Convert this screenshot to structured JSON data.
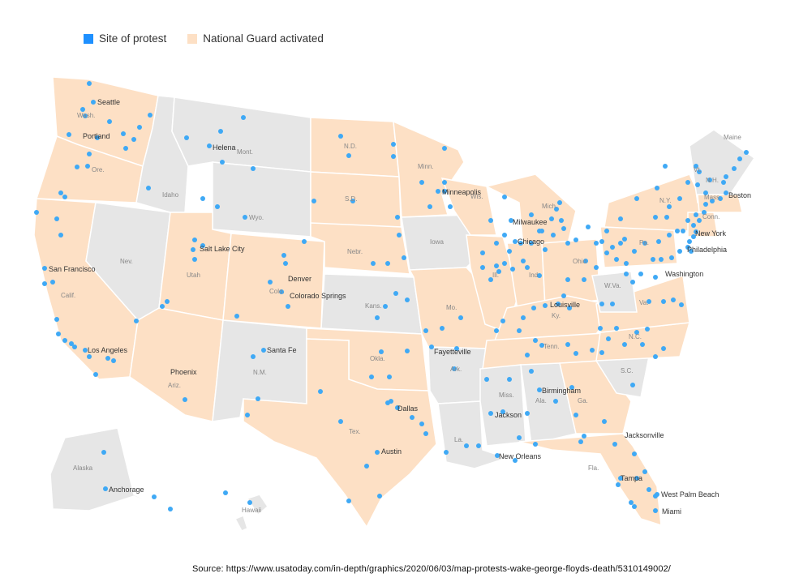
{
  "legend": {
    "protest_label": "Site of protest",
    "guard_label": "National Guard activated"
  },
  "colors": {
    "protest_dot": "#3fa9f5",
    "guard_state": "#fde0c5",
    "other_state": "#e6e6e6",
    "border": "#ffffff"
  },
  "source": "Source: https://www.usatoday.com/in-depth/graphics/2020/06/03/map-protests-wake-george-floyds-death/5310149002/",
  "state_labels": [
    "Wash.",
    "Ore.",
    "Calif.",
    "Nev.",
    "Idaho",
    "Mont.",
    "Wyo.",
    "Utah",
    "Ariz.",
    "N.M.",
    "Colo.",
    "N.D.",
    "S.D.",
    "Nebr.",
    "Kans.",
    "Okla.",
    "Tex.",
    "Minn.",
    "Iowa",
    "Mo.",
    "Ark.",
    "La.",
    "Wis.",
    "Ill.",
    "Mich.",
    "Ind.",
    "Ohio",
    "Ky.",
    "Tenn.",
    "Miss.",
    "Ala.",
    "Ga.",
    "Fla.",
    "S.C.",
    "N.C.",
    "Va.",
    "W.Va.",
    "Pa.",
    "N.Y.",
    "Vt.",
    "N.H.",
    "Maine",
    "Mass.",
    "Conn.",
    "Alaska",
    "Hawaii"
  ],
  "cities": [
    "Seattle",
    "Portland",
    "Helena",
    "San Francisco",
    "Salt Lake City",
    "Denver",
    "Colorado Springs",
    "Los Angeles",
    "Phoenix",
    "Santa Fe",
    "Minneapolis",
    "Milwaukee",
    "Chicago",
    "Louisville",
    "Fayetteville",
    "Dallas",
    "Austin",
    "Birmingham",
    "Jackson",
    "New Orleans",
    "Jacksonville",
    "Tampa",
    "West Palm Beach",
    "Miami",
    "Washington",
    "Philadelphia",
    "New York",
    "Boston",
    "Anchorage"
  ]
}
